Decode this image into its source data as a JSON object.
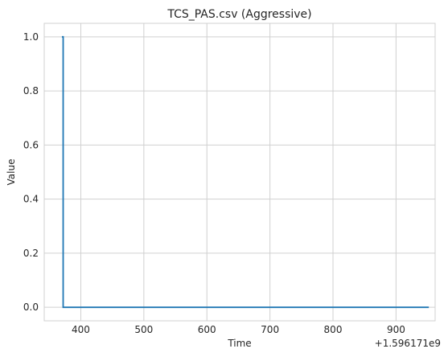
{
  "chart_data": {
    "type": "line",
    "title": "TCS_PAS.csv (Aggressive)",
    "xlabel": "Time",
    "ylabel": "Value",
    "x_offset_label": "+1.596171e9",
    "xlim": [
      342,
      962
    ],
    "ylim": [
      -0.05,
      1.05
    ],
    "x_ticks": [
      400,
      500,
      600,
      700,
      800,
      900
    ],
    "x_tick_labels": [
      "400",
      "500",
      "600",
      "700",
      "800",
      "900"
    ],
    "y_ticks": [
      0.0,
      0.2,
      0.4,
      0.6,
      0.8,
      1.0
    ],
    "y_tick_labels": [
      "0.0",
      "0.2",
      "0.4",
      "0.6",
      "0.8",
      "1.0"
    ],
    "grid": true,
    "series": [
      {
        "color": "#1f77b4",
        "x": [
          370,
          372,
          372,
          952
        ],
        "y": [
          1.0,
          1.0,
          0.0,
          0.0
        ]
      }
    ]
  }
}
